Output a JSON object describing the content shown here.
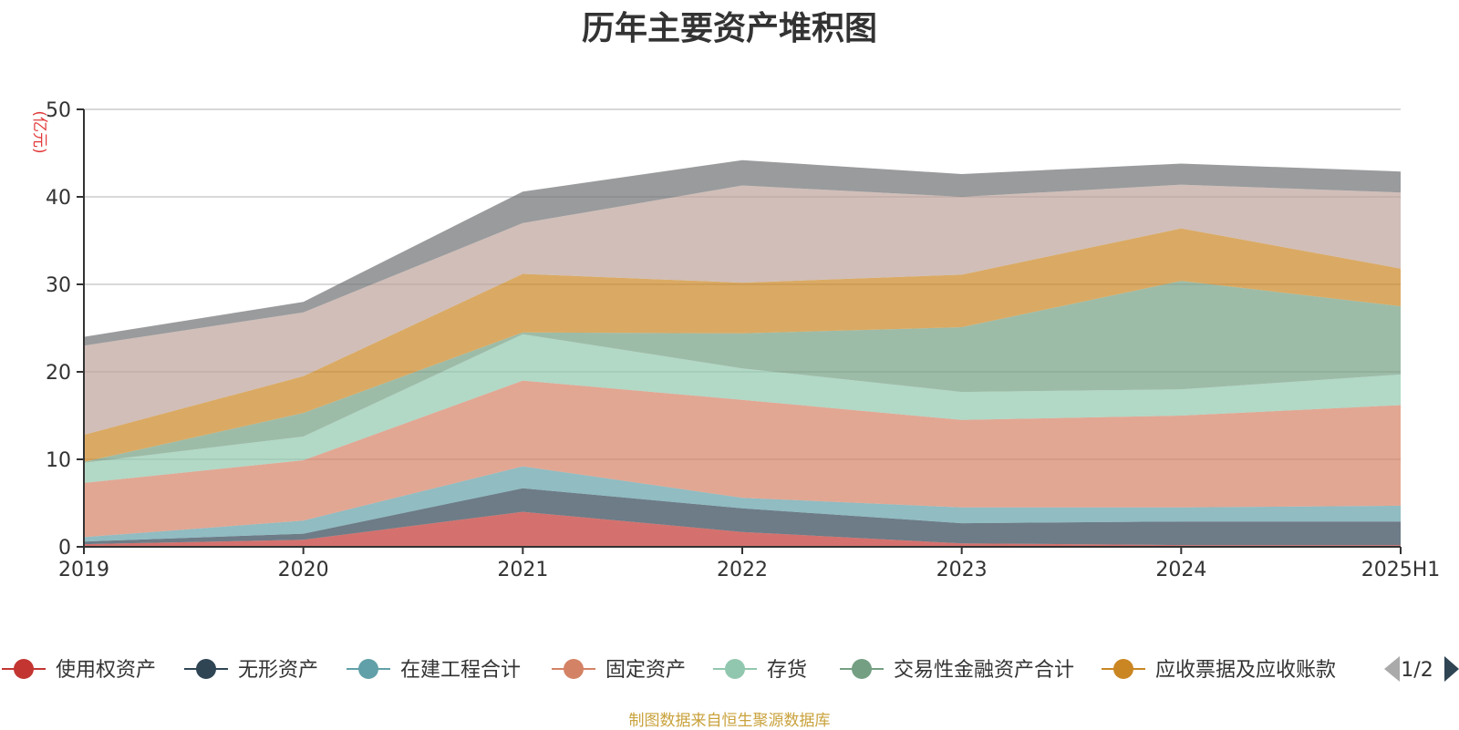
{
  "chart_data": {
    "type": "area",
    "stacked": true,
    "title": "历年主要资产堆积图",
    "ylabel": "(亿元)",
    "ylim": [
      0,
      50
    ],
    "yticks": [
      0,
      10,
      20,
      30,
      40,
      50
    ],
    "grid": true,
    "x": [
      "2019",
      "2020",
      "2021",
      "2022",
      "2023",
      "2024",
      "2025H1"
    ],
    "series": [
      {
        "name": "使用权资产",
        "color": "#c23531",
        "values": [
          0.3,
          0.8,
          4.0,
          1.7,
          0.4,
          0.2,
          0.2
        ]
      },
      {
        "name": "无形资产",
        "color": "#2f4554",
        "values": [
          0.3,
          0.7,
          2.7,
          2.7,
          2.3,
          2.7,
          2.7
        ]
      },
      {
        "name": "在建工程合计",
        "color": "#61a0a8",
        "values": [
          0.5,
          1.5,
          2.5,
          1.2,
          1.8,
          1.6,
          1.8
        ]
      },
      {
        "name": "固定资产",
        "color": "#d48265",
        "values": [
          6.2,
          6.9,
          9.8,
          11.2,
          10.0,
          10.5,
          11.5
        ]
      },
      {
        "name": "存货",
        "color": "#91c7ae",
        "values": [
          2.3,
          2.7,
          5.3,
          3.6,
          3.2,
          3.0,
          3.5
        ]
      },
      {
        "name": "交易性金融资产合计",
        "color": "#749f83",
        "values": [
          0.1,
          2.7,
          0.2,
          4.0,
          7.4,
          12.4,
          7.8
        ]
      },
      {
        "name": "应收票据及应收账款",
        "color": "#ca8622",
        "values": [
          3.1,
          4.2,
          6.7,
          5.8,
          6.0,
          6.0,
          4.3
        ]
      },
      {
        "name": "",
        "color": "#bda29a",
        "values": [
          10.2,
          7.3,
          5.8,
          11.1,
          8.9,
          5.0,
          8.7
        ]
      },
      {
        "name": "",
        "color": "#6e7074",
        "values": [
          1.0,
          1.2,
          3.6,
          2.9,
          2.6,
          2.4,
          2.4
        ]
      }
    ],
    "legend": {
      "placement": "bottom",
      "visible_items": [
        "使用权资产",
        "无形资产",
        "在建工程合计",
        "固定资产",
        "存货",
        "交易性金融资产合计",
        "应收票据及应收账款"
      ],
      "page_indicator": "1/2"
    }
  },
  "footer": "制图数据来自恒生聚源数据库"
}
